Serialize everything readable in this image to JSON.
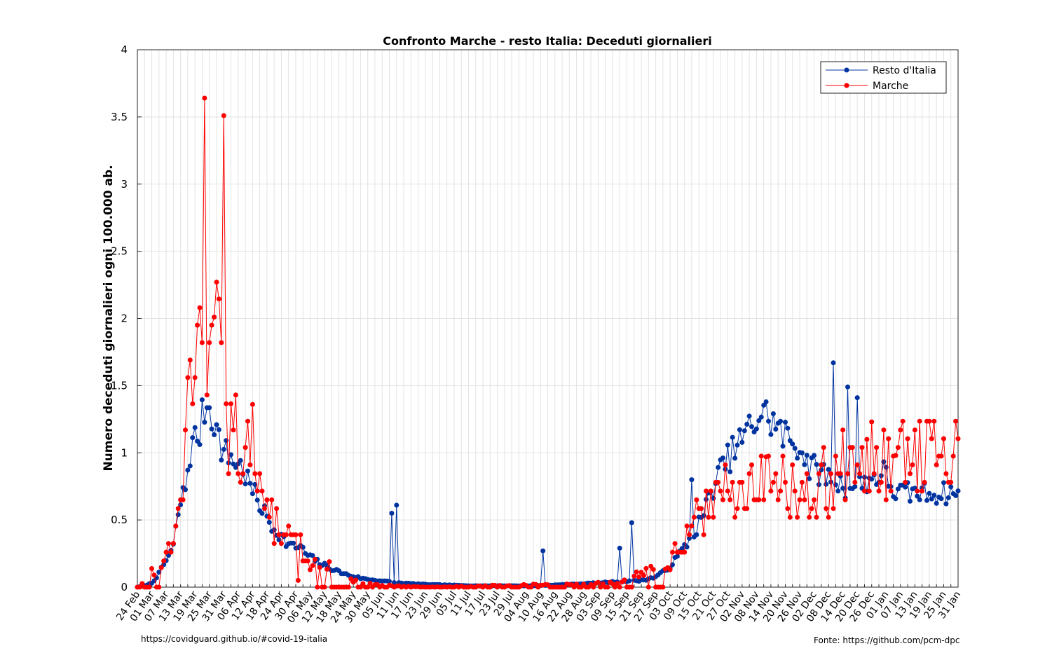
{
  "chart_data": {
    "type": "line",
    "title": "Confronto Marche - resto Italia: Deceduti giornalieri",
    "xlabel": "",
    "ylabel": "Numero deceduti giornalieri ogni 100.000 ab.",
    "ylim": [
      0,
      4
    ],
    "yticks": [
      "0",
      "0.5",
      "1",
      "1.5",
      "2",
      "2.5",
      "3",
      "3.5",
      "4"
    ],
    "grid": true,
    "legend_position": "top-right",
    "x_tick_labels": [
      "24 Feb",
      "01 Mar",
      "07 Mar",
      "13 Mar",
      "19 Mar",
      "25 Mar",
      "31 Mar",
      "06 Apr",
      "12 Apr",
      "18 Apr",
      "24 Apr",
      "30 Apr",
      "06 May",
      "12 May",
      "18 May",
      "24 May",
      "30 May",
      "05 Jun",
      "11 Jun",
      "17 Jun",
      "23 Jun",
      "29 Jun",
      "05 Jul",
      "11 Jul",
      "17 Jul",
      "23 Jul",
      "29 Jul",
      "04 Aug",
      "10 Aug",
      "16 Aug",
      "22 Aug",
      "28 Aug",
      "03 Sep",
      "09 Sep",
      "15 Sep",
      "21 Sep",
      "27 Sep",
      "03 Oct",
      "09 Oct",
      "15 Oct",
      "21 Oct",
      "27 Oct",
      "02 Nov",
      "08 Nov",
      "14 Nov",
      "20 Nov",
      "26 Nov",
      "02 Dec",
      "08 Dec",
      "14 Dec",
      "20 Dec",
      "26 Dec",
      "01 Jan",
      "07 Jan",
      "13 Jan",
      "19 Jan",
      "25 Jan",
      "31 Jan"
    ],
    "x_start_label": "24 Feb",
    "series": [
      {
        "name": "Resto d'Italia",
        "color": "#0033a0",
        "keypoints": [
          [
            0,
            0.0
          ],
          [
            3,
            0.01
          ],
          [
            6,
            0.03
          ],
          [
            9,
            0.1
          ],
          [
            12,
            0.2
          ],
          [
            15,
            0.3
          ],
          [
            17,
            0.55
          ],
          [
            20,
            0.75
          ],
          [
            22,
            1.0
          ],
          [
            24,
            1.1
          ],
          [
            26,
            1.15
          ],
          [
            28,
            1.35
          ],
          [
            30,
            1.35
          ],
          [
            32,
            1.25
          ],
          [
            34,
            1.1
          ],
          [
            36,
            1.0
          ],
          [
            38,
            0.98
          ],
          [
            40,
            0.95
          ],
          [
            44,
            0.88
          ],
          [
            47,
            0.75
          ],
          [
            50,
            0.65
          ],
          [
            53,
            0.55
          ],
          [
            56,
            0.45
          ],
          [
            59,
            0.4
          ],
          [
            62,
            0.33
          ],
          [
            65,
            0.3
          ],
          [
            68,
            0.3
          ],
          [
            70,
            0.25
          ],
          [
            74,
            0.2
          ],
          [
            78,
            0.16
          ],
          [
            82,
            0.13
          ],
          [
            86,
            0.1
          ],
          [
            90,
            0.08
          ],
          [
            95,
            0.06
          ],
          [
            100,
            0.05
          ],
          [
            110,
            0.03
          ],
          [
            120,
            0.02
          ],
          [
            140,
            0.01
          ],
          [
            165,
            0.01
          ],
          [
            180,
            0.02
          ],
          [
            190,
            0.03
          ],
          [
            200,
            0.04
          ],
          [
            210,
            0.05
          ],
          [
            215,
            0.07
          ],
          [
            220,
            0.12
          ],
          [
            224,
            0.2
          ],
          [
            228,
            0.3
          ],
          [
            232,
            0.4
          ],
          [
            236,
            0.55
          ],
          [
            240,
            0.75
          ],
          [
            244,
            0.9
          ],
          [
            248,
            1.0
          ],
          [
            252,
            1.1
          ],
          [
            256,
            1.2
          ],
          [
            260,
            1.3
          ],
          [
            264,
            1.25
          ],
          [
            268,
            1.15
          ],
          [
            272,
            1.1
          ],
          [
            276,
            1.05
          ],
          [
            280,
            0.9
          ],
          [
            285,
            0.85
          ],
          [
            290,
            0.8
          ],
          [
            295,
            0.75
          ],
          [
            300,
            0.75
          ],
          [
            305,
            0.8
          ],
          [
            311,
            0.85
          ],
          [
            316,
            0.7
          ]
        ],
        "spikes": [
          [
            169,
            0.27
          ],
          [
            106,
            0.55
          ],
          [
            108,
            0.61
          ],
          [
            290,
            1.67
          ],
          [
            296,
            1.49
          ],
          [
            300,
            1.41
          ],
          [
            231,
            0.8
          ],
          [
            201,
            0.29
          ],
          [
            206,
            0.48
          ]
        ]
      },
      {
        "name": "Marche",
        "color": "#ff0000",
        "keypoints": [
          [
            0,
            0.0
          ],
          [
            4,
            0.05
          ],
          [
            8,
            0.1
          ],
          [
            12,
            0.25
          ],
          [
            15,
            0.4
          ],
          [
            18,
            0.7
          ],
          [
            20,
            1.0
          ],
          [
            22,
            1.4
          ],
          [
            24,
            1.2
          ],
          [
            26,
            1.8
          ],
          [
            28,
            1.5
          ],
          [
            30,
            1.7
          ],
          [
            32,
            1.5
          ],
          [
            34,
            1.8
          ],
          [
            36,
            1.6
          ],
          [
            38,
            1.2
          ],
          [
            40,
            1.0
          ],
          [
            42,
            0.9
          ],
          [
            44,
            0.75
          ],
          [
            46,
            1.0
          ],
          [
            48,
            1.0
          ],
          [
            50,
            0.8
          ],
          [
            53,
            0.7
          ],
          [
            56,
            0.5
          ],
          [
            60,
            0.4
          ],
          [
            64,
            0.35
          ],
          [
            68,
            0.3
          ],
          [
            72,
            0.2
          ],
          [
            76,
            0.12
          ],
          [
            80,
            0.08
          ],
          [
            84,
            0.05
          ],
          [
            90,
            0.03
          ],
          [
            100,
            0.01
          ],
          [
            120,
            0.0
          ],
          [
            200,
            0.02
          ],
          [
            205,
            0.05
          ],
          [
            210,
            0.08
          ],
          [
            215,
            0.1
          ],
          [
            218,
            0.12
          ],
          [
            222,
            0.2
          ],
          [
            226,
            0.3
          ],
          [
            230,
            0.45
          ],
          [
            234,
            0.55
          ],
          [
            238,
            0.6
          ],
          [
            242,
            0.65
          ],
          [
            246,
            0.7
          ],
          [
            250,
            0.75
          ],
          [
            254,
            0.7
          ],
          [
            258,
            0.8
          ],
          [
            262,
            0.75
          ],
          [
            266,
            0.8
          ],
          [
            270,
            0.75
          ],
          [
            274,
            0.7
          ],
          [
            278,
            0.65
          ],
          [
            282,
            0.7
          ],
          [
            286,
            0.75
          ],
          [
            290,
            0.8
          ],
          [
            295,
            0.8
          ],
          [
            300,
            0.85
          ],
          [
            305,
            0.85
          ],
          [
            311,
            0.85
          ],
          [
            316,
            0.98
          ]
        ],
        "spikes": [
          [
            28,
            3.64
          ],
          [
            36,
            3.51
          ],
          [
            33,
            2.27
          ],
          [
            32,
            2.01
          ],
          [
            25,
            1.95
          ],
          [
            27,
            1.82
          ],
          [
            30,
            1.82
          ],
          [
            41,
            1.43
          ],
          [
            48,
            1.36
          ],
          [
            306,
            1.23
          ],
          [
            311,
            1.17
          ],
          [
            294,
            1.17
          ],
          [
            304,
            1.1
          ],
          [
            316,
            0.98
          ],
          [
            262,
            0.97
          ],
          [
            286,
            1.04
          ],
          [
            67,
            0.05
          ],
          [
            80,
            0.19
          ]
        ]
      }
    ]
  },
  "footer": {
    "left": "https://covidguard.github.io/#covid-19-italia",
    "right": "Fonte: https://github.com/pcm-dpc"
  }
}
